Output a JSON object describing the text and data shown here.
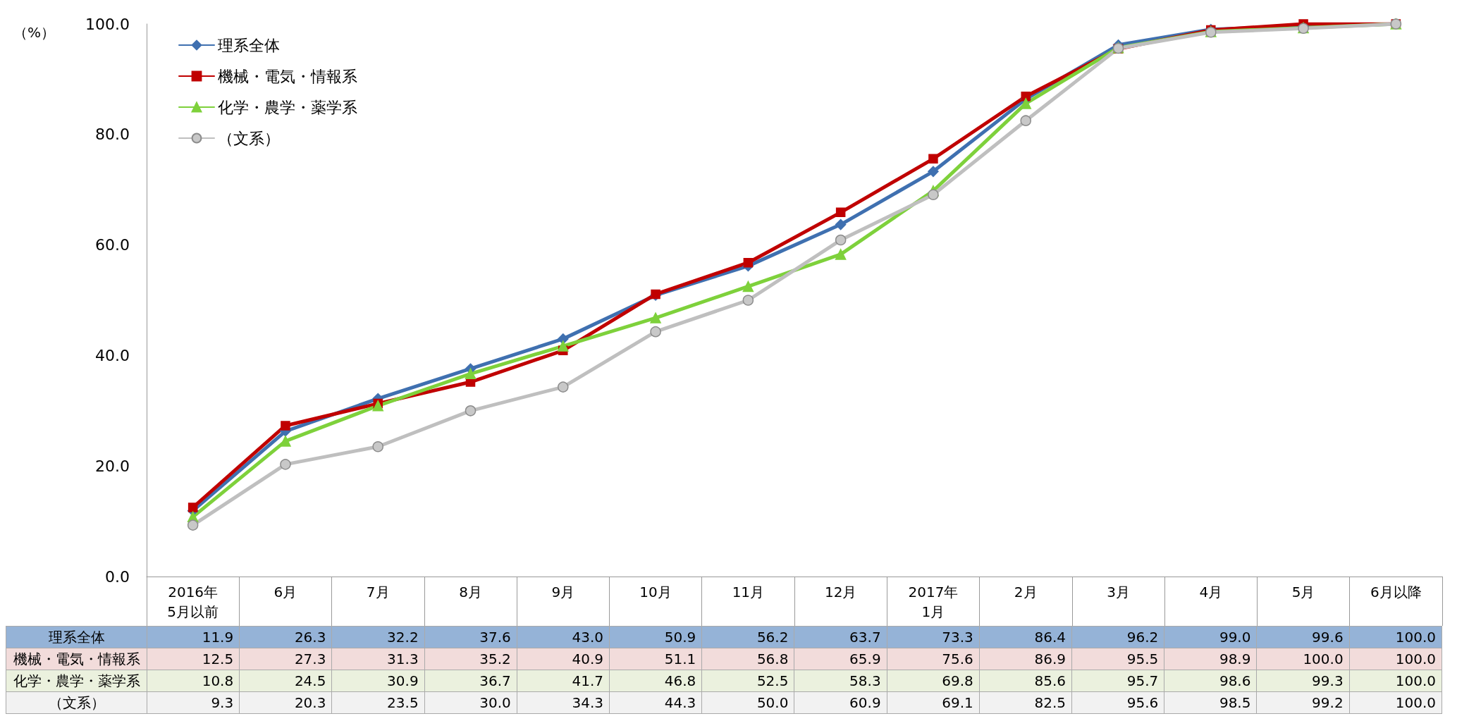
{
  "chart_data": {
    "type": "line",
    "ylabel": "（%）",
    "categories": [
      "2016年\n5月以前",
      "6月",
      "7月",
      "8月",
      "9月",
      "10月",
      "11月",
      "12月",
      "2017年\n1月",
      "2月",
      "3月",
      "4月",
      "5月",
      "6月以降"
    ],
    "ylim": [
      0,
      100
    ],
    "yticks": [
      {
        "value": 0,
        "label": "0.0"
      },
      {
        "value": 20,
        "label": "20.0"
      },
      {
        "value": 40,
        "label": "40.0"
      },
      {
        "value": 60,
        "label": "60.0"
      },
      {
        "value": 80,
        "label": "80.0"
      },
      {
        "value": 100,
        "label": "100.0"
      }
    ],
    "grid": false,
    "legend": "top left",
    "series": [
      {
        "name": "理系全体",
        "color": "#3f70b0",
        "marker": "diamond",
        "values": [
          11.9,
          26.3,
          32.2,
          37.6,
          43.0,
          50.9,
          56.2,
          63.7,
          73.3,
          86.4,
          96.2,
          99.0,
          99.6,
          100.0
        ],
        "value_labels": [
          "11.9",
          "26.3",
          "32.2",
          "37.6",
          "43.0",
          "50.9",
          "56.2",
          "63.7",
          "73.3",
          "86.4",
          "96.2",
          "99.0",
          "99.6",
          "100.0"
        ]
      },
      {
        "name": "機械・電気・情報系",
        "color": "#c00000",
        "marker": "square",
        "values": [
          12.5,
          27.3,
          31.3,
          35.2,
          40.9,
          51.1,
          56.8,
          65.9,
          75.6,
          86.9,
          95.5,
          98.9,
          100.0,
          100.0
        ],
        "value_labels": [
          "12.5",
          "27.3",
          "31.3",
          "35.2",
          "40.9",
          "51.1",
          "56.8",
          "65.9",
          "75.6",
          "86.9",
          "95.5",
          "98.9",
          "100.0",
          "100.0"
        ]
      },
      {
        "name": "化学・農学・薬学系",
        "color": "#7ed13b",
        "marker": "triangle",
        "values": [
          10.8,
          24.5,
          30.9,
          36.7,
          41.7,
          46.8,
          52.5,
          58.3,
          69.8,
          85.6,
          95.7,
          98.6,
          99.3,
          100.0
        ],
        "value_labels": [
          "10.8",
          "24.5",
          "30.9",
          "36.7",
          "41.7",
          "46.8",
          "52.5",
          "58.3",
          "69.8",
          "85.6",
          "95.7",
          "98.6",
          "99.3",
          "100.0"
        ]
      },
      {
        "name": "（文系）",
        "color": "#bfbfbf",
        "marker": "circle",
        "values": [
          9.3,
          20.3,
          23.5,
          30.0,
          34.3,
          44.3,
          50.0,
          60.9,
          69.1,
          82.5,
          95.6,
          98.5,
          99.2,
          100.0
        ],
        "value_labels": [
          "9.3",
          "20.3",
          "23.5",
          "30.0",
          "34.3",
          "44.3",
          "50.0",
          "60.9",
          "69.1",
          "82.5",
          "95.6",
          "98.5",
          "99.2",
          "100.0"
        ]
      }
    ]
  }
}
